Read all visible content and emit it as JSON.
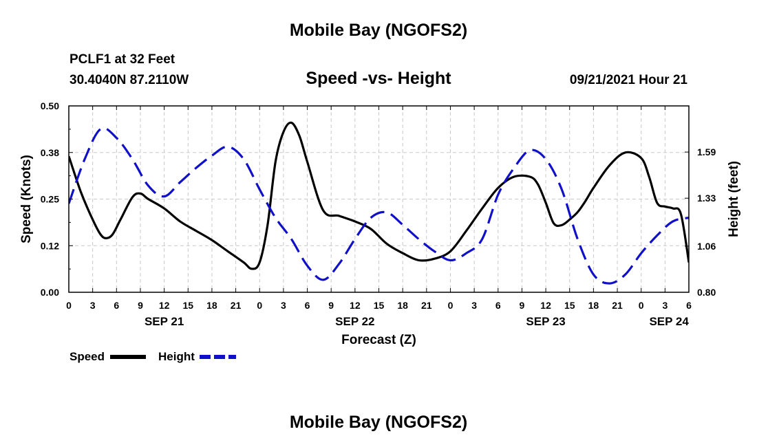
{
  "header": {
    "title": "Mobile Bay (NGOFS2)",
    "station": "PCLF1 at 32 Feet",
    "coords": "30.4040N  87.2110W",
    "subtitle": "Speed -vs- Height",
    "datetime": "09/21/2021 Hour 21"
  },
  "footer": {
    "title": "Mobile Bay (NGOFS2)"
  },
  "chart_data": {
    "type": "line",
    "title": "Speed -vs- Height",
    "xlabel": "Forecast (Z)",
    "ylabel": "Speed (Knots)",
    "y2label": "Height (feet)",
    "xlim": [
      0,
      78
    ],
    "ylim": [
      0,
      0.5
    ],
    "y2lim": [
      0.8,
      1.85
    ],
    "grid": true,
    "legend_position": "bottom-left",
    "x_tick_positions": [
      0,
      3,
      6,
      9,
      12,
      15,
      18,
      21,
      24,
      27,
      30,
      33,
      36,
      39,
      42,
      45,
      48,
      51,
      54,
      57,
      60,
      63,
      66,
      69,
      72,
      75,
      78
    ],
    "x_tick_labels": [
      "0",
      "3",
      "6",
      "9",
      "12",
      "15",
      "18",
      "21",
      "0",
      "3",
      "6",
      "9",
      "12",
      "15",
      "18",
      "21",
      "0",
      "3",
      "6",
      "9",
      "12",
      "15",
      "18",
      "21",
      "0",
      "3",
      "6"
    ],
    "day_labels": [
      {
        "x": 12,
        "label": "SEP 21"
      },
      {
        "x": 36,
        "label": "SEP 22"
      },
      {
        "x": 60,
        "label": "SEP 23"
      },
      {
        "x": 75.5,
        "label": "SEP 24"
      }
    ],
    "y_ticks": [
      0,
      0.125,
      0.25,
      0.375,
      0.5
    ],
    "y_tick_labels": [
      "0.00",
      "0.12",
      "0.25",
      "0.38",
      "0.50"
    ],
    "y2_ticks": [
      0.8,
      1.06,
      1.33,
      1.59
    ],
    "y2_tick_labels": [
      "0.80",
      "1.06",
      "1.33",
      "1.59"
    ],
    "series": [
      {
        "name": "Speed",
        "axis": "left",
        "color": "#000000",
        "dash": "solid",
        "x": [
          0,
          1.5,
          3,
          4,
          4.7,
          5.5,
          6.5,
          8,
          9,
          10,
          12,
          14,
          16,
          18,
          20,
          22,
          23,
          24,
          25,
          26,
          27,
          28,
          29,
          30,
          32,
          34,
          36,
          38,
          40,
          42,
          44,
          46,
          48,
          50,
          52,
          54,
          56,
          58,
          59,
          60,
          61,
          62,
          63,
          64,
          65,
          66,
          68,
          70,
          72,
          73,
          74,
          75,
          76,
          77,
          78
        ],
        "y": [
          0.365,
          0.27,
          0.195,
          0.155,
          0.145,
          0.155,
          0.195,
          0.255,
          0.265,
          0.25,
          0.225,
          0.19,
          0.165,
          0.14,
          0.11,
          0.08,
          0.063,
          0.08,
          0.18,
          0.35,
          0.43,
          0.455,
          0.42,
          0.35,
          0.22,
          0.205,
          0.19,
          0.17,
          0.13,
          0.105,
          0.086,
          0.09,
          0.11,
          0.165,
          0.225,
          0.28,
          0.31,
          0.31,
          0.29,
          0.24,
          0.185,
          0.18,
          0.195,
          0.215,
          0.245,
          0.28,
          0.34,
          0.375,
          0.36,
          0.31,
          0.24,
          0.23,
          0.225,
          0.21,
          0.08
        ]
      },
      {
        "name": "Height",
        "axis": "right",
        "color": "#1010c8",
        "dash": "dashed",
        "x": [
          0,
          2,
          4,
          6,
          8,
          10,
          12,
          14,
          16,
          18,
          20,
          22,
          24,
          26,
          28,
          30,
          32,
          34,
          36,
          38,
          40,
          42,
          44,
          46,
          48,
          50,
          52,
          54,
          56,
          58,
          60,
          62,
          64,
          66,
          68,
          70,
          72,
          74,
          76,
          78
        ],
        "y": [
          1.3,
          1.55,
          1.72,
          1.67,
          1.55,
          1.4,
          1.34,
          1.42,
          1.5,
          1.57,
          1.62,
          1.55,
          1.38,
          1.22,
          1.1,
          0.95,
          0.87,
          0.96,
          1.1,
          1.22,
          1.25,
          1.18,
          1.1,
          1.03,
          0.98,
          1.02,
          1.1,
          1.35,
          1.5,
          1.6,
          1.55,
          1.38,
          1.1,
          0.9,
          0.85,
          0.9,
          1.02,
          1.12,
          1.2,
          1.22
        ]
      }
    ]
  }
}
